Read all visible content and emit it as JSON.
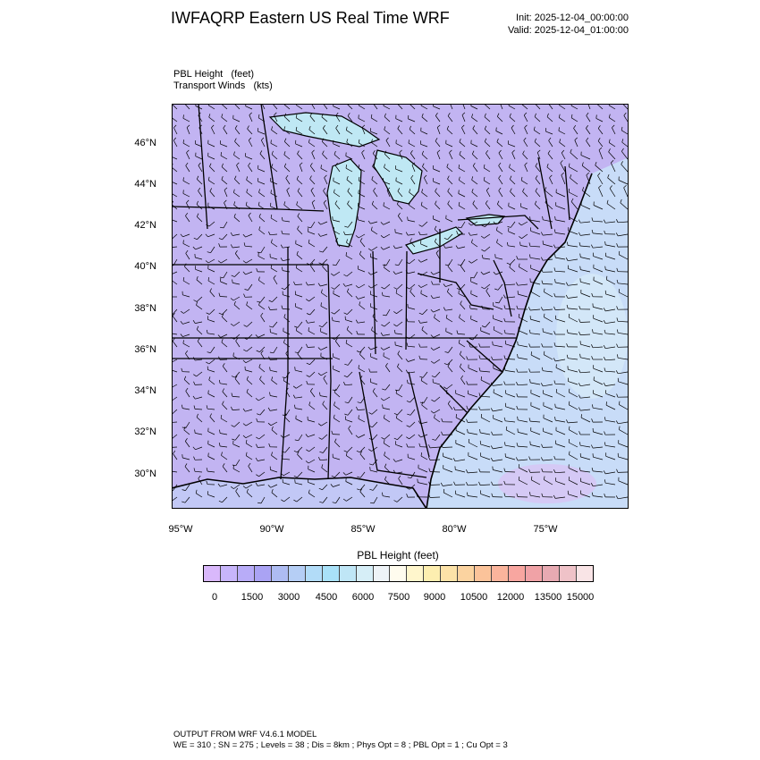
{
  "title": "IWFAQRP Eastern US Real Time WRF",
  "init_time": "Init: 2025-12-04_00:00:00",
  "valid_time": "Valid: 2025-12-04_01:00:00",
  "field_label": "PBL Height   (feet)",
  "wind_label": "Transport Winds   (kts)",
  "map": {
    "lat_labels": [
      "46°N",
      "44°N",
      "42°N",
      "40°N",
      "38°N",
      "36°N",
      "34°N",
      "32°N",
      "30°N"
    ],
    "lon_labels": [
      "95°W",
      "90°W",
      "85°W",
      "80°W",
      "75°W"
    ],
    "colors": {
      "land_base": "#c2b4f2",
      "land_deep": "#a79cf2",
      "lake": "#bfe8f4",
      "ocean_base": "#c8dcf8",
      "ocean_light": "#d6eaf8",
      "ocean_pink": "#d8c4f4",
      "border": "#000000"
    }
  },
  "colorbar": {
    "title": "PBL Height  (feet)",
    "labels": [
      "0",
      "1500",
      "3000",
      "4500",
      "6000",
      "7500",
      "9000",
      "10500",
      "12000",
      "13500",
      "15000"
    ],
    "colors": [
      "#d9b8fb",
      "#c7b5fa",
      "#b8acf8",
      "#aaa3f4",
      "#aebcf2",
      "#b5cef5",
      "#b2dcf8",
      "#a9e1f8",
      "#bfe6f6",
      "#d6eef7",
      "#eef3f7",
      "#fffcee",
      "#fff6cc",
      "#fdeeb0",
      "#fce2a8",
      "#fbd3a0",
      "#fbc39a",
      "#fab49c",
      "#f8a6a0",
      "#f0a2a6",
      "#e7aab2",
      "#efc2c8",
      "#f9e4e6"
    ]
  },
  "footer": {
    "line1": "OUTPUT FROM WRF V4.6.1 MODEL",
    "line2": "WE = 310 ; SN = 275 ; Levels = 38 ; Dis = 8km ; Phys Opt = 8 ; PBL Opt = 1 ; Cu Opt = 3"
  }
}
